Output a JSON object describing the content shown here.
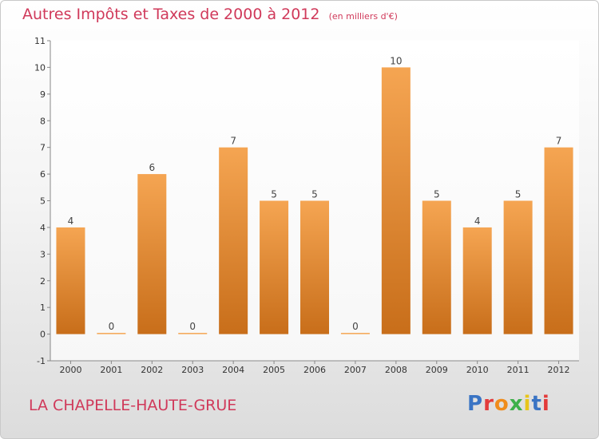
{
  "chart_data": {
    "type": "bar",
    "title": "Autres Impôts et Taxes de 2000 à 2012",
    "subtitle": "(en milliers d'€)",
    "categories": [
      "2000",
      "2001",
      "2002",
      "2003",
      "2004",
      "2005",
      "2006",
      "2007",
      "2008",
      "2009",
      "2010",
      "2011",
      "2012"
    ],
    "values": [
      4,
      0,
      6,
      0,
      7,
      5,
      5,
      0,
      10,
      5,
      4,
      5,
      7
    ],
    "data_labels": [
      "4",
      "0",
      "6",
      "0",
      "7",
      "5",
      "5",
      "0",
      "10",
      "5",
      "4",
      "5",
      "7"
    ],
    "y_ticks": [
      "-1",
      "0",
      "1",
      "2",
      "3",
      "4",
      "5",
      "6",
      "7",
      "8",
      "9",
      "10",
      "11"
    ],
    "ylim": [
      -1,
      11
    ],
    "xlabel": "",
    "ylabel": "",
    "grid": false,
    "bar_color_top": "#f5a552",
    "bar_color_bottom": "#c86e1a"
  },
  "footer": {
    "commune": "LA CHAPELLE-HAUTE-GRUE",
    "brand": "Proxiti"
  },
  "colors": {
    "title": "#d0395a",
    "brand_letters": [
      "#3a74c4",
      "#e33b3b",
      "#f08c1c",
      "#3db04a",
      "#e8c51a",
      "#3a74c4",
      "#e33b3b"
    ]
  }
}
